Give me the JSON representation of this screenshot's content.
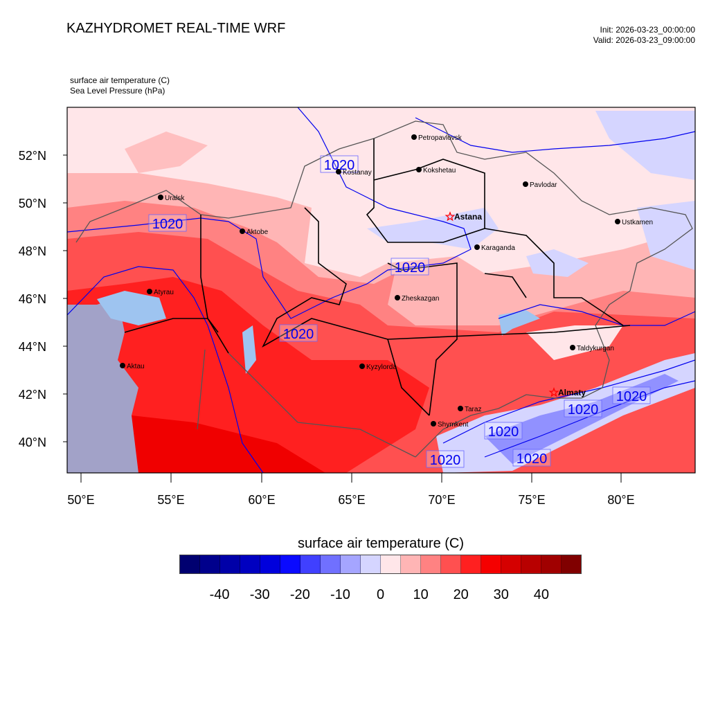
{
  "header": {
    "title": "KAZHYDROMET REAL-TIME WRF",
    "init": "Init: 2026-03-23_00:00:00",
    "valid": "Valid: 2026-03-23_09:00:00",
    "subtitle_1": "surface air temperature   (C)",
    "subtitle_2": "Sea Level Pressure   (hPa)"
  },
  "axes": {
    "lat_ticks": [
      "52°N",
      "50°N",
      "48°N",
      "46°N",
      "44°N",
      "42°N",
      "40°N"
    ],
    "lon_ticks": [
      "50°E",
      "55°E",
      "60°E",
      "65°E",
      "70°E",
      "75°E",
      "80°E"
    ]
  },
  "cities": [
    {
      "name": "Petropavlovsk",
      "capital": false
    },
    {
      "name": "Kokshetau",
      "capital": false
    },
    {
      "name": "Kostanay",
      "capital": false
    },
    {
      "name": "Uralsk",
      "capital": false
    },
    {
      "name": "Aktobe",
      "capital": false
    },
    {
      "name": "Astana",
      "capital": true
    },
    {
      "name": "Pavlodar",
      "capital": false
    },
    {
      "name": "Ustkamen",
      "capital": false
    },
    {
      "name": "Karaganda",
      "capital": false
    },
    {
      "name": "Atyrau",
      "capital": false
    },
    {
      "name": "Zheskazgan",
      "capital": false
    },
    {
      "name": "Aktau",
      "capital": false
    },
    {
      "name": "Kyzylorda",
      "capital": false
    },
    {
      "name": "Taldykurgan",
      "capital": false
    },
    {
      "name": "Almaty",
      "capital": true
    },
    {
      "name": "Taraz",
      "capital": false
    },
    {
      "name": "Shymkent",
      "capital": false
    }
  ],
  "isobar_label": "1020",
  "colorbar": {
    "title": "surface air temperature  (C)",
    "labels": [
      "-40",
      "-30",
      "-20",
      "-10",
      "0",
      "10",
      "20",
      "30",
      "40"
    ],
    "colors": [
      "#000070",
      "#00008c",
      "#0000a8",
      "#0000c0",
      "#0000dc",
      "#0a0aff",
      "#4040ff",
      "#7070ff",
      "#a5a5ff",
      "#d5d5ff",
      "#ffe6e9",
      "#ffb5b5",
      "#ff8282",
      "#ff5050",
      "#ff2020",
      "#f50000",
      "#d50000",
      "#b80000",
      "#a00000",
      "#800000"
    ]
  }
}
